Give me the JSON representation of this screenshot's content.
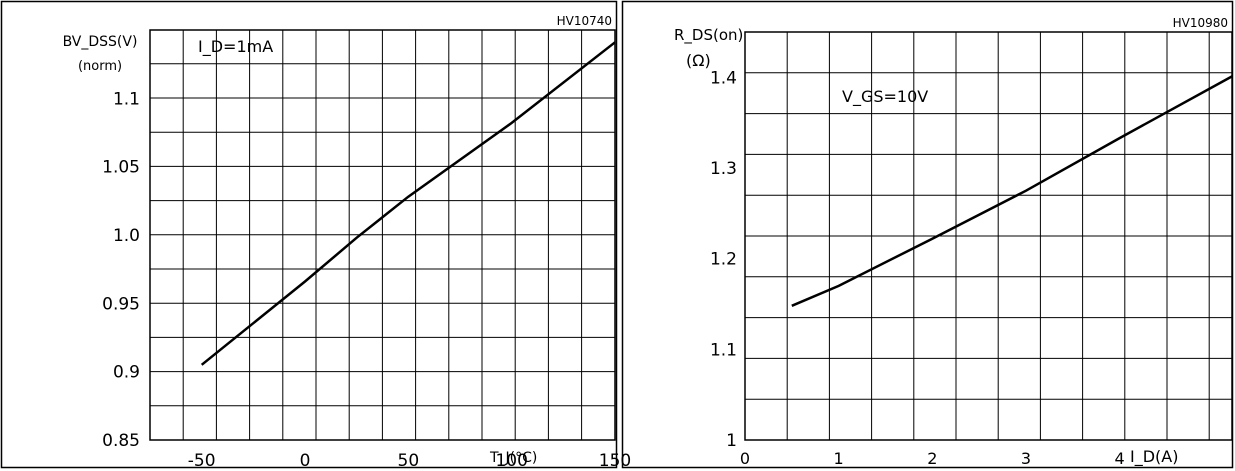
{
  "chart_data": [
    {
      "type": "line",
      "code": "HV10740",
      "condition": "I_D=1mA",
      "ylabel_line1": "BV_DSS(V)",
      "ylabel_line2": "(norm)",
      "xlabel": "T_J(°C)",
      "xlim": [
        -75,
        150
      ],
      "ylim": [
        0.85,
        1.15
      ],
      "xticks": [
        -50,
        0,
        50,
        100,
        150
      ],
      "xtick_labels": [
        "-50",
        "0",
        "50",
        "100",
        "150"
      ],
      "yticks": [
        0.9,
        0.95,
        1.0,
        1.05,
        1.1
      ],
      "ytick_labels": [
        "0.9",
        "0.95",
        "1.0",
        "1.05",
        "1.1"
      ],
      "ybottom_label": "0.85",
      "grid": true,
      "series": [
        {
          "x": [
            -50,
            0,
            25,
            50,
            100,
            150
          ],
          "y": [
            0.905,
            0.966,
            0.998,
            1.028,
            1.082,
            1.141
          ]
        }
      ]
    },
    {
      "type": "line",
      "code": "HV10980",
      "condition": "V_GS=10V",
      "ylabel_line1": "R_DS(on)",
      "ylabel_line2": "(Ω)",
      "xlabel": "I_D(A)",
      "xlim": [
        0,
        5.2
      ],
      "ylim": [
        1.0,
        1.45
      ],
      "xticks": [
        0,
        1,
        2,
        3,
        4
      ],
      "xtick_labels": [
        "0",
        "1",
        "2",
        "3",
        "4"
      ],
      "yticks": [
        1.0,
        1.1,
        1.2,
        1.3,
        1.4
      ],
      "ytick_labels": [
        "1",
        "1.1",
        "1.2",
        "1.3",
        "1.4"
      ],
      "grid": true,
      "series": [
        {
          "x": [
            0.5,
            1,
            2,
            3,
            4,
            5.2
          ],
          "y": [
            1.148,
            1.17,
            1.222,
            1.275,
            1.333,
            1.401
          ]
        }
      ]
    }
  ]
}
